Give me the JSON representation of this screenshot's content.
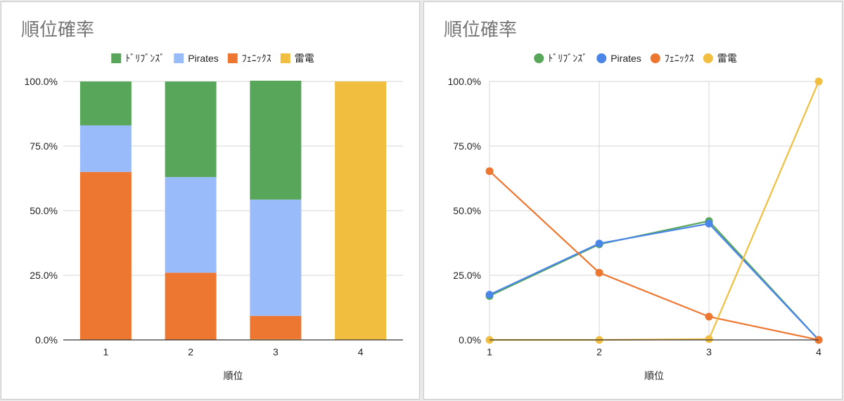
{
  "charts": {
    "left": {
      "title": "順位確率"
    },
    "right": {
      "title": "順位確率"
    }
  },
  "chart_data": [
    {
      "type": "bar",
      "stacked": true,
      "title": "順位確率",
      "xlabel": "順位",
      "ylabel": "",
      "categories": [
        "1",
        "2",
        "3",
        "4"
      ],
      "y_ticks": [
        "0.0%",
        "25.0%",
        "50.0%",
        "75.0%",
        "100.0%"
      ],
      "ylim": [
        0,
        1
      ],
      "legend_position": "top",
      "series": [
        {
          "name": "ﾄﾞﾘﾌﾞﾝｽﾞ",
          "color": "#57a65a",
          "values": [
            0.17,
            0.37,
            0.46,
            0.0
          ]
        },
        {
          "name": "Pirates",
          "color": "#9abbf9",
          "values": [
            0.18,
            0.37,
            0.45,
            0.0
          ]
        },
        {
          "name": "ﾌｪﾆｯｸｽ",
          "color": "#ed7630",
          "values": [
            0.65,
            0.26,
            0.09,
            0.0
          ]
        },
        {
          "name": "雷電",
          "color": "#f2be3f",
          "values": [
            0.0,
            0.0,
            0.003,
            1.0
          ]
        }
      ]
    },
    {
      "type": "line",
      "title": "順位確率",
      "xlabel": "順位",
      "ylabel": "",
      "categories": [
        "1",
        "2",
        "3",
        "4"
      ],
      "y_ticks": [
        "0.0%",
        "25.0%",
        "50.0%",
        "75.0%",
        "100.0%"
      ],
      "ylim": [
        0,
        1
      ],
      "grid": true,
      "legend_position": "top",
      "series": [
        {
          "name": "ﾄﾞﾘﾌﾞﾝｽﾞ",
          "color": "#57a65a",
          "values": [
            0.17,
            0.37,
            0.46,
            0.0
          ]
        },
        {
          "name": "Pirates",
          "color": "#4a86e8",
          "values": [
            0.175,
            0.373,
            0.45,
            0.0
          ]
        },
        {
          "name": "ﾌｪﾆｯｸｽ",
          "color": "#ed7630",
          "values": [
            0.653,
            0.26,
            0.09,
            0.0
          ]
        },
        {
          "name": "雷電",
          "color": "#f2be3f",
          "values": [
            0.0,
            0.0,
            0.003,
            1.0
          ]
        }
      ]
    }
  ]
}
